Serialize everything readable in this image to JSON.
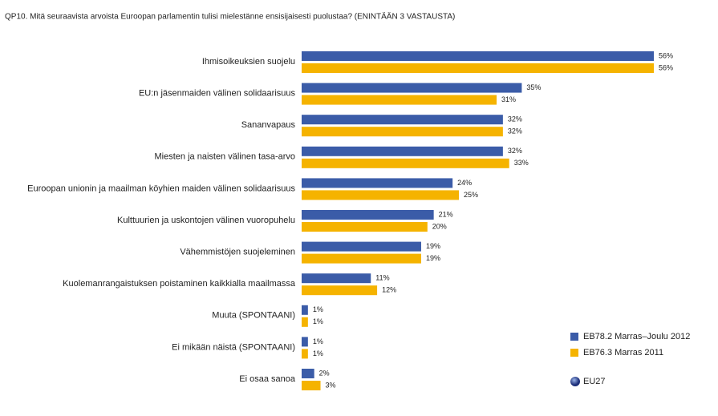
{
  "chart_data": {
    "type": "bar",
    "orientation": "horizontal",
    "title": "QP10. Mitä seuraavista arvoista Euroopan parlamentin tulisi mielestänne ensisijaisesti puolustaa? (ENINTÄÄN 3 VASTAUSTA)",
    "categories": [
      "Ihmisoikeuksien suojelu",
      "EU:n jäsenmaiden välinen solidaarisuus",
      "Sananvapaus",
      "Miesten ja naisten välinen tasa-arvo",
      "Euroopan unionin ja maailman köyhien maiden välinen solidaarisuus",
      "Kulttuurien ja uskontojen välinen vuoropuhelu",
      "Vähemmistöjen suojeleminen",
      "Kuolemanrangaistuksen poistaminen kaikkialla maailmassa",
      "Muuta (SPONTAANI)",
      "Ei mikään näistä (SPONTAANI)",
      "Ei osaa sanoa"
    ],
    "series": [
      {
        "name": "EB78.2 Marras–Joulu 2012",
        "color": "#3b5ca8",
        "values": [
          56,
          35,
          32,
          32,
          24,
          21,
          19,
          11,
          1,
          1,
          2
        ],
        "value_labels": [
          "56%",
          "35%",
          "32%",
          "32%",
          "24%",
          "21%",
          "19%",
          "11%",
          "1%",
          "1%",
          "2%"
        ]
      },
      {
        "name": "EB76.3 Marras 2011",
        "color": "#f5b300",
        "values": [
          56,
          31,
          32,
          33,
          25,
          20,
          19,
          12,
          1,
          1,
          3
        ],
        "value_labels": [
          "56%",
          "31%",
          "32%",
          "33%",
          "25%",
          "20%",
          "19%",
          "12%",
          "1%",
          "1%",
          "3%"
        ]
      }
    ],
    "scope_label": "EU27"
  }
}
